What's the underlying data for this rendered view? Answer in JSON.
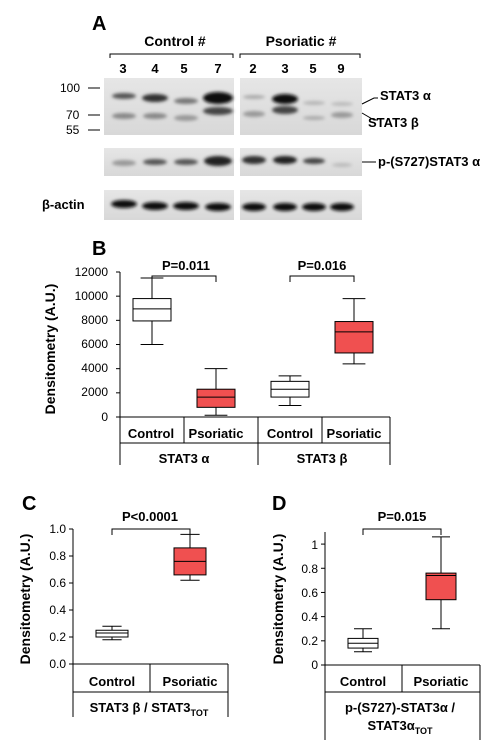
{
  "panel_labels": {
    "a": "A",
    "b": "B",
    "c": "C",
    "d": "D"
  },
  "blot": {
    "control_header": "Control #",
    "psoriatic_header": "Psoriatic #",
    "control_lanes": [
      "3",
      "4",
      "5",
      "7"
    ],
    "psoriatic_lanes": [
      "2",
      "3",
      "5",
      "9"
    ],
    "mw_markers": [
      "100",
      "70",
      "55"
    ],
    "band_labels": {
      "stat3_alpha": "STAT3 α",
      "stat3_beta": "STAT3 β",
      "p_stat3": "p-(S727)STAT3 α",
      "actin": "β-actin"
    }
  },
  "chart_data": [
    {
      "panel": "B",
      "type": "box",
      "ylabel": "Densitometry (A.U.)",
      "ylim": [
        0,
        12000
      ],
      "yticks": [
        "0",
        "2000",
        "4000",
        "6000",
        "8000",
        "10000",
        "12000"
      ],
      "yticks_values": [
        0,
        2000,
        4000,
        6000,
        8000,
        10000,
        12000
      ],
      "categories": [
        "Control",
        "Psoriatic",
        "Control",
        "Psoriatic"
      ],
      "groups": [
        "STAT3 α",
        "STAT3 β"
      ],
      "boxes": [
        {
          "category": "Control",
          "group": "STAT3 α",
          "min": 6000,
          "q1": 7950,
          "median": 8950,
          "q3": 9800,
          "max": 11500,
          "color": "#ffffff"
        },
        {
          "category": "Psoriatic",
          "group": "STAT3 α",
          "min": 150,
          "q1": 800,
          "median": 1650,
          "q3": 2300,
          "max": 4000,
          "color": "#f05050"
        },
        {
          "category": "Control",
          "group": "STAT3 β",
          "min": 950,
          "q1": 1650,
          "median": 2300,
          "q3": 2950,
          "max": 3400,
          "color": "#ffffff"
        },
        {
          "category": "Psoriatic",
          "group": "STAT3 β",
          "min": 4400,
          "q1": 5300,
          "median": 7050,
          "q3": 7900,
          "max": 9800,
          "color": "#f05050"
        }
      ],
      "significance": [
        {
          "pair": [
            0,
            1
          ],
          "label": "P=0.011"
        },
        {
          "pair": [
            2,
            3
          ],
          "label": "P=0.016"
        }
      ]
    },
    {
      "panel": "C",
      "type": "box",
      "ylabel": "Densitometry (A.U.)",
      "ylim": [
        0,
        1.0
      ],
      "yticks": [
        "0.0",
        "0.2",
        "0.4",
        "0.6",
        "0.8",
        "1.0"
      ],
      "yticks_values": [
        0,
        0.2,
        0.4,
        0.6,
        0.8,
        1.0
      ],
      "categories": [
        "Control",
        "Psoriatic"
      ],
      "group_label_main": "STAT3 β / STAT3",
      "group_label_sub": "TOT",
      "boxes": [
        {
          "category": "Control",
          "min": 0.18,
          "q1": 0.2,
          "median": 0.23,
          "q3": 0.25,
          "max": 0.28,
          "color": "#ffffff"
        },
        {
          "category": "Psoriatic",
          "min": 0.62,
          "q1": 0.66,
          "median": 0.76,
          "q3": 0.86,
          "max": 0.96,
          "color": "#f05050"
        }
      ],
      "significance": [
        {
          "pair": [
            0,
            1
          ],
          "label": "P<0.0001"
        }
      ]
    },
    {
      "panel": "D",
      "type": "box",
      "ylabel": "Densitometry (A.U.)",
      "ylim": [
        0,
        1.1
      ],
      "yticks": [
        "0",
        "0.2",
        "0.4",
        "0.6",
        "0.8",
        "1"
      ],
      "yticks_values": [
        0,
        0.2,
        0.4,
        0.6,
        0.8,
        1.0
      ],
      "categories": [
        "Control",
        "Psoriatic"
      ],
      "group_label_line1": "p-(S727)-STAT3α /",
      "group_label_line2_main": "STAT3α",
      "group_label_line2_sub": "TOT",
      "boxes": [
        {
          "category": "Control",
          "min": 0.11,
          "q1": 0.14,
          "median": 0.18,
          "q3": 0.22,
          "max": 0.3,
          "color": "#ffffff"
        },
        {
          "category": "Psoriatic",
          "min": 0.3,
          "q1": 0.54,
          "median": 0.74,
          "q3": 0.76,
          "max": 1.06,
          "color": "#f05050"
        }
      ],
      "significance": [
        {
          "pair": [
            0,
            1
          ],
          "label": "P=0.015"
        }
      ]
    }
  ]
}
